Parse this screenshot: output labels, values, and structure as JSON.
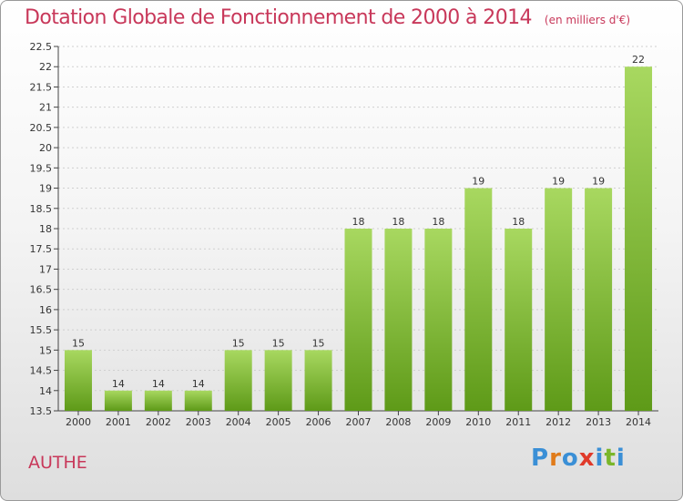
{
  "title": "Dotation Globale de Fonctionnement de 2000 à 2014",
  "subtitle": "(en milliers d'€)",
  "commune": "AUTHE",
  "logo": {
    "letters": [
      "P",
      "r",
      "o",
      "x",
      "i",
      "t",
      "i"
    ],
    "colors": [
      "#3a8fd6",
      "#e07b1a",
      "#3a8fd6",
      "#e03a2a",
      "#3a8fd6",
      "#7ab62a",
      "#3a8fd6"
    ]
  },
  "colors": {
    "title": "#c8385a",
    "bar_top": "#a8d860",
    "bar_bottom": "#5e9a18"
  },
  "chart_data": {
    "type": "bar",
    "categories": [
      "2000",
      "2001",
      "2002",
      "2003",
      "2004",
      "2005",
      "2006",
      "2007",
      "2008",
      "2009",
      "2010",
      "2011",
      "2012",
      "2013",
      "2014"
    ],
    "values": [
      15,
      14,
      14,
      14,
      15,
      15,
      15,
      18,
      18,
      18,
      19,
      18,
      19,
      19,
      22
    ],
    "value_labels": [
      "15",
      "14",
      "14",
      "14",
      "15",
      "15",
      "15",
      "18",
      "18",
      "18",
      "19",
      "18",
      "19",
      "19",
      "22"
    ],
    "ylim": [
      13.5,
      22.5
    ],
    "yticks": [
      13.5,
      14,
      14.5,
      15,
      15.5,
      16,
      16.5,
      17,
      17.5,
      18,
      18.5,
      19,
      19.5,
      20,
      20.5,
      21,
      21.5,
      22,
      22.5
    ],
    "ytick_labels": [
      "13.5",
      "14",
      "14.5",
      "15",
      "15.5",
      "16",
      "16.5",
      "17",
      "17.5",
      "18",
      "18.5",
      "19",
      "19.5",
      "20",
      "20.5",
      "21",
      "21.5",
      "22",
      "22.5"
    ],
    "grid": true,
    "xlabel": "",
    "ylabel": ""
  }
}
